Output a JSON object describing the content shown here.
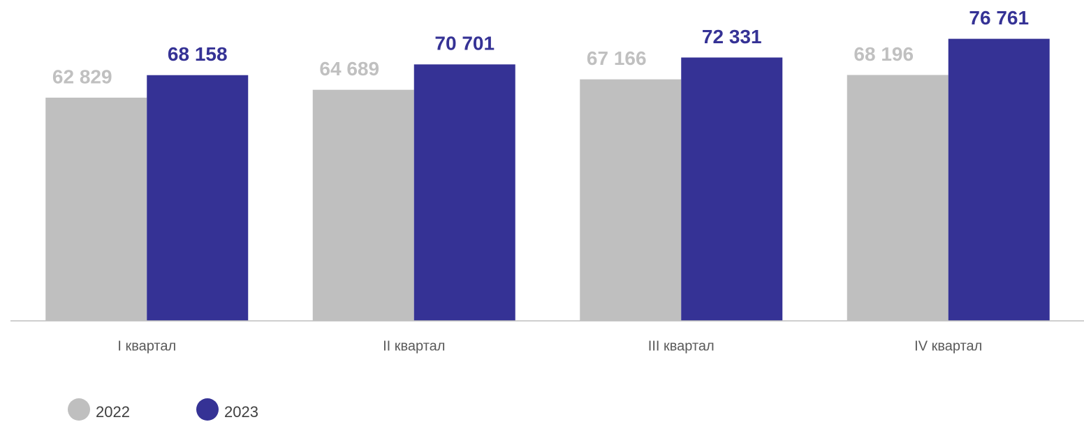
{
  "chart_data": {
    "type": "bar",
    "categories": [
      "I квартал",
      "II квартал",
      "III квартал",
      "IV квартал"
    ],
    "series": [
      {
        "name": "2022",
        "color": "#bfbfbf",
        "label_color": "#c0c0c0",
        "values": [
          62829,
          64689,
          67166,
          68196
        ],
        "value_labels": [
          "62 829",
          "64 689",
          "67 166",
          "68 196"
        ]
      },
      {
        "name": "2023",
        "color": "#353295",
        "label_color": "#353295",
        "values": [
          68158,
          70701,
          72331,
          76761
        ],
        "value_labels": [
          "68 158",
          "70 701",
          "72 331",
          "76 761"
        ]
      }
    ],
    "ylim": [
      10000,
      80000
    ],
    "legend": "bottom-left"
  }
}
